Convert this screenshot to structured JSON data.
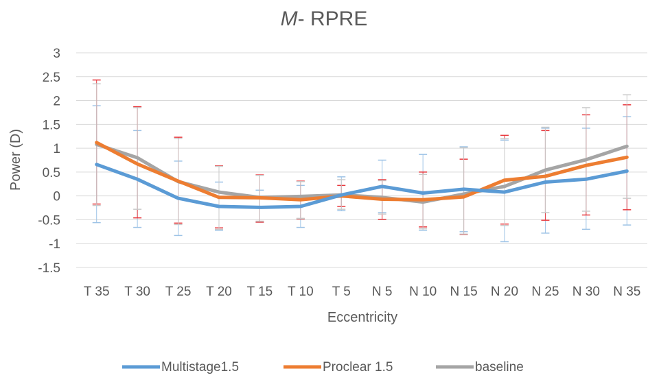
{
  "chart_data": {
    "type": "line",
    "title": {
      "italic": "M",
      "rest": "- RPRE"
    },
    "xlabel": "Eccentricity",
    "ylabel": "Power (D)",
    "ylim": [
      -1.5,
      3
    ],
    "yticks": [
      3,
      2.5,
      2,
      1.5,
      1,
      0.5,
      0,
      -0.5,
      -1,
      -1.5
    ],
    "ytick_labels": [
      "3",
      "2.5",
      "2",
      "1.5",
      "1",
      "0.5",
      "0",
      "-0.5",
      "-1",
      "-1.5"
    ],
    "grid": true,
    "legend_position": "bottom",
    "categories": [
      "T 35",
      "T 30",
      "T 25",
      "T 20",
      "T 15",
      "T 10",
      "T 5",
      "N 5",
      "N 10",
      "N 15",
      "N 20",
      "N 25",
      "N 30",
      "N 35"
    ],
    "series": [
      {
        "name": "Multistage1.5",
        "color": "#5B9BD5",
        "errorbar_color": "#9DC3E6",
        "values": [
          0.66,
          0.35,
          -0.05,
          -0.22,
          -0.24,
          -0.22,
          0.02,
          0.2,
          0.06,
          0.14,
          0.08,
          0.29,
          0.35,
          0.52
        ],
        "upper": [
          1.89,
          1.37,
          0.73,
          0.29,
          0.12,
          0.22,
          0.4,
          0.75,
          0.87,
          1.03,
          1.17,
          1.42,
          1.42,
          1.66
        ],
        "lower": [
          -0.56,
          -0.66,
          -0.83,
          -0.72,
          -0.55,
          -0.66,
          -0.31,
          -0.35,
          -0.72,
          -0.75,
          -0.96,
          -0.78,
          -0.7,
          -0.61
        ]
      },
      {
        "name": "Proclear 1.5",
        "color": "#ED7D31",
        "errorbar_color": "#E8383D",
        "values": [
          1.12,
          0.67,
          0.31,
          -0.03,
          -0.04,
          -0.08,
          0.0,
          -0.07,
          -0.08,
          -0.02,
          0.33,
          0.41,
          0.64,
          0.81
        ],
        "upper": [
          2.43,
          1.87,
          1.23,
          0.63,
          0.44,
          0.31,
          0.22,
          0.34,
          0.5,
          0.77,
          1.27,
          1.37,
          1.7,
          1.91
        ],
        "lower": [
          -0.17,
          -0.46,
          -0.57,
          -0.67,
          -0.55,
          -0.48,
          -0.22,
          -0.49,
          -0.65,
          -0.81,
          -0.59,
          -0.51,
          -0.4,
          -0.29
        ]
      },
      {
        "name": "baseline",
        "color": "#A5A5A5",
        "errorbar_color": "#C9C9C9",
        "values": [
          1.08,
          0.8,
          0.3,
          0.08,
          -0.03,
          -0.01,
          0.02,
          -0.03,
          -0.13,
          0.04,
          0.2,
          0.54,
          0.76,
          1.04
        ],
        "upper": [
          2.35,
          1.85,
          1.2,
          0.62,
          0.43,
          0.3,
          0.34,
          0.32,
          0.45,
          1.01,
          1.2,
          1.44,
          1.85,
          2.12
        ],
        "lower": [
          -0.2,
          -0.28,
          -0.6,
          -0.7,
          -0.53,
          -0.47,
          -0.28,
          -0.38,
          -0.69,
          -0.8,
          -0.62,
          -0.35,
          -0.32,
          -0.05
        ]
      }
    ]
  }
}
